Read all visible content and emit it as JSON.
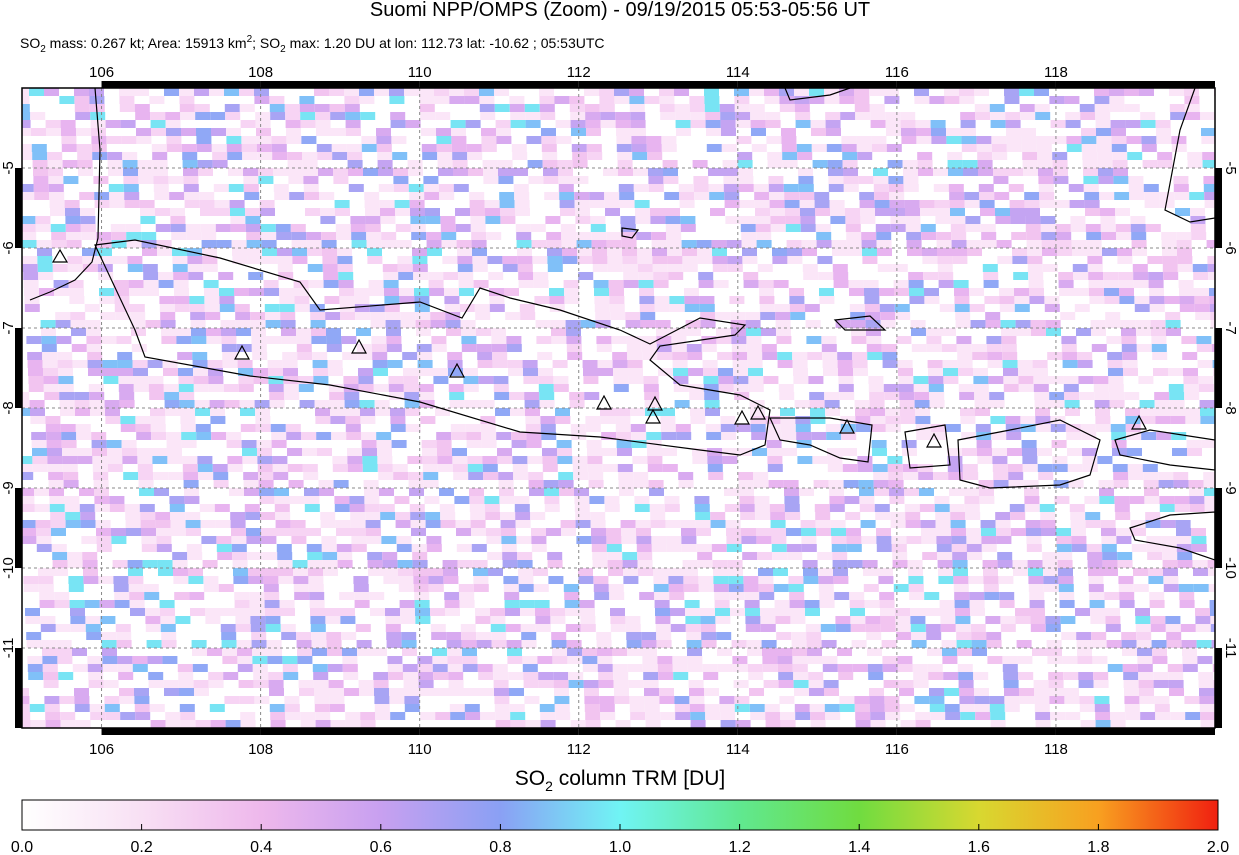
{
  "header": {
    "title": "Suomi NPP/OMPS (Zoom) - 09/19/2015 05:53-05:56 UT",
    "subtitle_parts": [
      "SO",
      "2",
      " mass: 0.267 kt; Area: 15913 km",
      "2",
      "; SO",
      "2",
      " max: 1.20 DU at lon: 112.73 lat: -10.62 ; 05:53UTC"
    ]
  },
  "map": {
    "xlim": [
      105,
      120
    ],
    "ylim": [
      -4,
      -12
    ],
    "xticks": [
      106,
      108,
      110,
      112,
      114,
      116,
      118
    ],
    "yticks": [
      -5,
      -6,
      -7,
      -8,
      -9,
      -10,
      -11
    ],
    "grid": true
  },
  "colorbar": {
    "label_parts": [
      "SO",
      "2",
      " column TRM [DU]"
    ],
    "lim": [
      0,
      2
    ],
    "ticks": [
      {
        "value": 0,
        "label": "0.0"
      },
      {
        "value": 0.2,
        "label": "0.2"
      },
      {
        "value": 0.4,
        "label": "0.4"
      },
      {
        "value": 0.6,
        "label": "0.6"
      },
      {
        "value": 0.8,
        "label": "0.8"
      },
      {
        "value": 1,
        "label": "1.0"
      },
      {
        "value": 1.2,
        "label": "1.2"
      },
      {
        "value": 1.4,
        "label": "1.4"
      },
      {
        "value": 1.6,
        "label": "1.6"
      },
      {
        "value": 1.8,
        "label": "1.8"
      },
      {
        "value": 2,
        "label": "2.0"
      }
    ]
  }
}
